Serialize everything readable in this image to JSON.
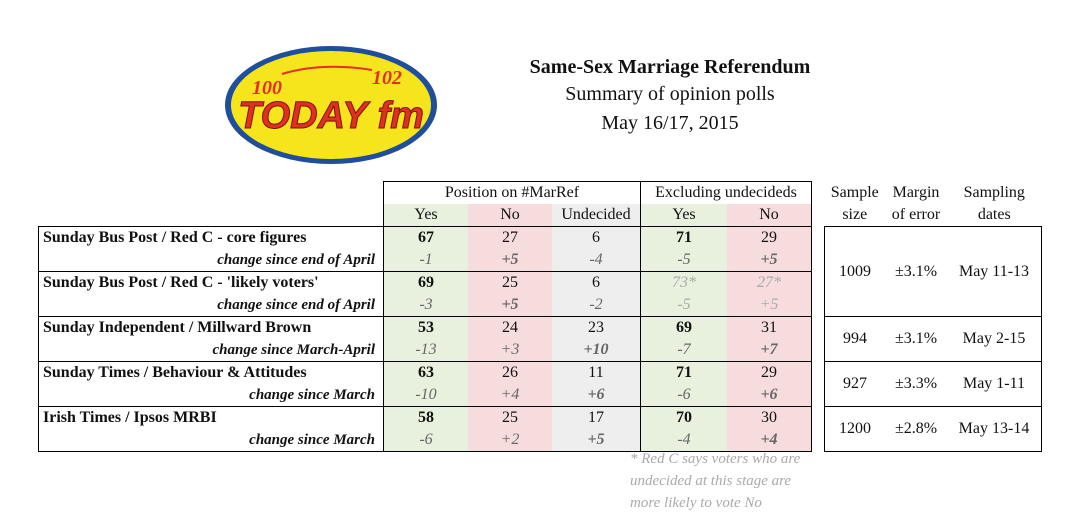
{
  "logo": {
    "small_left": "100",
    "small_right": "102",
    "brand": "TODAY fm"
  },
  "header": {
    "title": "Same-Sex Marriage Referendum",
    "subtitle": "Summary of opinion polls",
    "date": "May 16/17, 2015"
  },
  "table": {
    "group_position": "Position on #MarRef",
    "group_excluding": "Excluding undecideds",
    "col_yes": "Yes",
    "col_no": "No",
    "col_undecided": "Undecided",
    "col_sample_1": "Sample",
    "col_sample_2": "size",
    "col_margin_1": "Margin",
    "col_margin_2": "of error",
    "col_dates_1": "Sampling",
    "col_dates_2": "dates",
    "polls": [
      {
        "name": "Sunday Bus Post / Red C - core figures",
        "yes": "67",
        "no": "27",
        "und": "6",
        "ex_yes": "71",
        "ex_no": "29",
        "change_label": "change since end of April",
        "c_yes": "-1",
        "c_no": "+5",
        "c_und": "-4",
        "c_ex_yes": "-5",
        "c_ex_no": "+5"
      },
      {
        "name": "Sunday Bus Post / Red C - 'likely voters'",
        "yes": "69",
        "no": "25",
        "und": "6",
        "ex_yes": "73*",
        "ex_no": "27*",
        "change_label": "change since end of April",
        "c_yes": "-3",
        "c_no": "+5",
        "c_und": "-2",
        "c_ex_yes": "-5",
        "c_ex_no": "+5"
      },
      {
        "name": "Sunday Independent / Millward Brown",
        "yes": "53",
        "no": "24",
        "und": "23",
        "ex_yes": "69",
        "ex_no": "31",
        "change_label": "change since March-April",
        "c_yes": "-13",
        "c_no": "+3",
        "c_und": "+10",
        "c_ex_yes": "-7",
        "c_ex_no": "+7"
      },
      {
        "name": "Sunday Times / Behaviour & Attitudes",
        "yes": "63",
        "no": "26",
        "und": "11",
        "ex_yes": "71",
        "ex_no": "29",
        "change_label": "change since March",
        "c_yes": "-10",
        "c_no": "+4",
        "c_und": "+6",
        "c_ex_yes": "-6",
        "c_ex_no": "+6"
      },
      {
        "name": "Irish Times / Ipsos MRBI",
        "yes": "58",
        "no": "25",
        "und": "17",
        "ex_yes": "70",
        "ex_no": "30",
        "change_label": "change since March",
        "c_yes": "-6",
        "c_no": "+2",
        "c_und": "+5",
        "c_ex_yes": "-4",
        "c_ex_no": "+4"
      }
    ],
    "meta": [
      {
        "size": "1009",
        "margin": "±3.1%",
        "dates": "May 11-13"
      },
      {
        "size": "994",
        "margin": "±3.1%",
        "dates": "May 2-15"
      },
      {
        "size": "927",
        "margin": "±3.3%",
        "dates": "May 1-11"
      },
      {
        "size": "1200",
        "margin": "±2.8%",
        "dates": "May 13-14"
      }
    ]
  },
  "footnote": {
    "line1": "* Red C says voters who are",
    "line2": "undecided at this stage are",
    "line3": "more likely to vote No"
  }
}
